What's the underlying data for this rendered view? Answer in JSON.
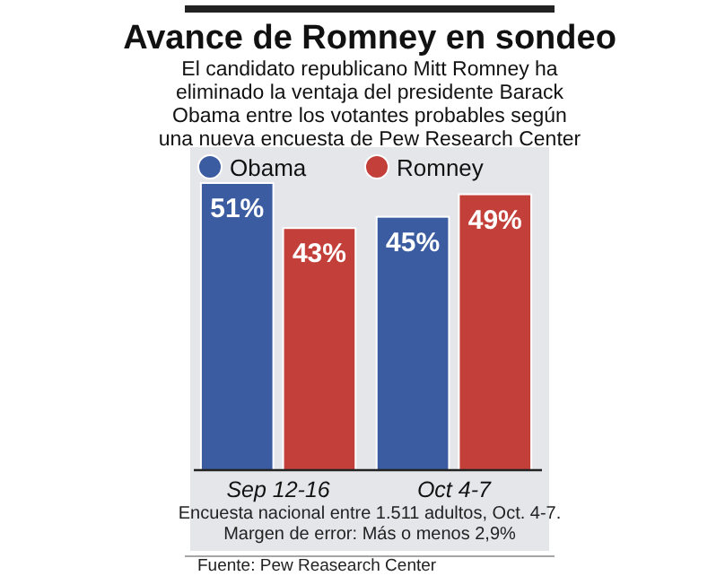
{
  "chart_data": {
    "type": "bar",
    "title": "Avance de Romney en sondeo",
    "subtitle": "El candidato republicano Mitt Romney ha eliminado la ventaja del presidente Barack Obama entre los votantes probables según una nueva encuesta de Pew Research Center",
    "categories": [
      "Sep 12-16",
      "Oct 4-7"
    ],
    "series": [
      {
        "name": "Obama",
        "color": "#3b5ca0",
        "values": [
          51,
          45
        ],
        "value_labels": [
          "51%",
          "45%"
        ]
      },
      {
        "name": "Romney",
        "color": "#c3403a",
        "values": [
          43,
          49
        ],
        "value_labels": [
          "43%",
          "49%"
        ]
      }
    ],
    "legend": "top",
    "annotations": [
      "Encuesta nacional entre 1.511 adultos, Oct. 4-7.",
      "Margen de error: Más o menos 2,9%",
      "Fuente: Pew Reasearch Center"
    ]
  }
}
